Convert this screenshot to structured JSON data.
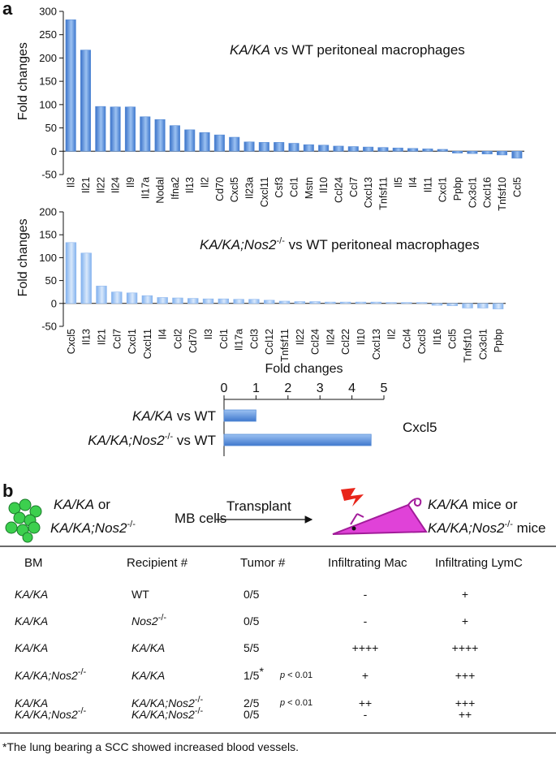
{
  "figure": {
    "panel_a_letter": "a",
    "panel_b_letter": "b"
  },
  "chart_data": [
    {
      "type": "bar",
      "title_italic": "KA/KA",
      "title_rest": " vs WT peritoneal macrophages",
      "ylabel": "Fold changes",
      "ylim": [
        -50,
        300
      ],
      "yticks": [
        -50,
        0,
        50,
        100,
        150,
        200,
        250,
        300
      ],
      "categories": [
        "Il3",
        "Il21",
        "Il22",
        "Il24",
        "Il9",
        "Il17a",
        "Nodal",
        "Ifna2",
        "Il13",
        "Il2",
        "Cd70",
        "Cxcl5",
        "Il23a",
        "Cxcl11",
        "Csf3",
        "Ccl1",
        "Mstn",
        "Il10",
        "Ccl24",
        "Ccl7",
        "Cxcl13",
        "Tnfsf11",
        "Il5",
        "Il4",
        "Il11",
        "Cxcl1",
        "Ppbp",
        "Cx3cl1",
        "Cxcl16",
        "Tnfsf10",
        "Ccl5"
      ],
      "values": [
        282,
        217,
        96,
        95,
        95,
        74,
        68,
        55,
        46,
        40,
        35,
        30,
        20,
        19,
        19,
        17,
        14,
        13,
        11,
        10,
        9,
        8,
        7,
        6,
        5,
        4,
        -4,
        -5,
        -6,
        -8,
        -15
      ],
      "bar_color": "#5b8fd8"
    },
    {
      "type": "bar",
      "title_italic": "KA/KA;Nos2",
      "title_sup": "-/-",
      "title_rest": " vs WT peritoneal macrophages",
      "ylabel": "Fold changes",
      "ylim": [
        -50,
        200
      ],
      "yticks": [
        -50,
        0,
        50,
        100,
        150,
        200
      ],
      "categories": [
        "Cxcl5",
        "Il13",
        "Il21",
        "Ccl7",
        "Cxcl1",
        "Cxcl11",
        "Il4",
        "Ccl2",
        "Cd70",
        "Il3",
        "Ccl1",
        "Il17a",
        "Ccl3",
        "Ccl12",
        "Tnfsf11",
        "Il22",
        "Ccl24",
        "Il24",
        "Ccl22",
        "Il10",
        "Cxcl13",
        "Il2",
        "Ccl4",
        "Cxcl3",
        "Il16",
        "Ccl5",
        "Tnfsf10",
        "Cx3cl1",
        "Ppbp"
      ],
      "values": [
        133,
        110,
        38,
        25,
        23,
        17,
        13,
        12,
        11,
        10,
        10,
        9,
        9,
        7,
        5,
        4,
        4,
        3,
        3,
        3,
        3,
        2,
        2,
        2,
        -4,
        -5,
        -10,
        -10,
        -12
      ],
      "bar_color": "#8fb8ef"
    },
    {
      "type": "bar",
      "orientation": "horizontal",
      "xlabel": "Fold changes",
      "xlim": [
        0,
        5
      ],
      "xticks": [
        0,
        1,
        2,
        3,
        4,
        5
      ],
      "series_label": "Cxcl5",
      "rows": [
        {
          "italic": "KA/KA",
          "sup": "",
          "rest": " vs WT",
          "value": 1
        },
        {
          "italic": "KA/KA;Nos2",
          "sup": "-/-",
          "rest": " vs WT",
          "value": 4.6
        }
      ],
      "bar_color": "#5b8fd8"
    }
  ],
  "schematic": {
    "donor_line1": "KA/KA",
    "donor_or": "  or",
    "donor_line2": "KA/KA;Nos2",
    "donor_sup": "-/-",
    "cells_label": "MB cells",
    "arrow_label": "Transplant",
    "recipient_line1_italic": "KA/KA",
    "recipient_line1_rest": " mice or",
    "recipient_line2_italic": "KA/KA;Nos2",
    "recipient_line2_sup": "-/-",
    "recipient_line2_rest": " mice",
    "cell_color": "#3ccf4e",
    "mouse_color": "#e042d8",
    "bolt_color": "#e8251a"
  },
  "table": {
    "headers": [
      "BM",
      "Recipient #",
      "Tumor #",
      "Infiltrating Mac",
      "Infiltrating LymC"
    ],
    "rows": [
      {
        "bm": "KA/KA",
        "bm_sup": "",
        "rec": "WT",
        "rec_italic": false,
        "rec_sup": "",
        "tumor": "0/5",
        "star": "",
        "p": "",
        "mac": "-",
        "lym": "+"
      },
      {
        "bm": "KA/KA",
        "bm_sup": "",
        "rec": "Nos2",
        "rec_italic": true,
        "rec_sup": "-/-",
        "tumor": "0/5",
        "star": "",
        "p": "",
        "mac": "-",
        "lym": "+"
      },
      {
        "bm": "KA/KA",
        "bm_sup": "",
        "rec": "KA/KA",
        "rec_italic": true,
        "rec_sup": "",
        "tumor": "5/5",
        "star": "",
        "p": "",
        "mac": "++++",
        "lym": "++++"
      },
      {
        "bm": "KA/KA;Nos2",
        "bm_sup": "-/-",
        "rec": "KA/KA",
        "rec_italic": true,
        "rec_sup": "",
        "tumor": "1/5",
        "star": "*",
        "p": "p < 0.01",
        "mac": "+",
        "lym": "+++"
      },
      {
        "bm": "KA/KA",
        "bm_sup": "",
        "rec": "KA/KA;Nos2",
        "rec_italic": true,
        "rec_sup": "-/-",
        "tumor": "2/5",
        "star": "",
        "p": "p < 0.01",
        "mac": "++",
        "lym": "+++"
      },
      {
        "bm": "KA/KA;Nos2",
        "bm_sup": "-/-",
        "rec": "KA/KA;Nos2",
        "rec_italic": true,
        "rec_sup": "-/-",
        "tumor": "0/5",
        "star": "",
        "p": "",
        "mac": "-",
        "lym": "++"
      }
    ],
    "footnote": "*The lung bearing a SCC showed increased blood vessels."
  }
}
